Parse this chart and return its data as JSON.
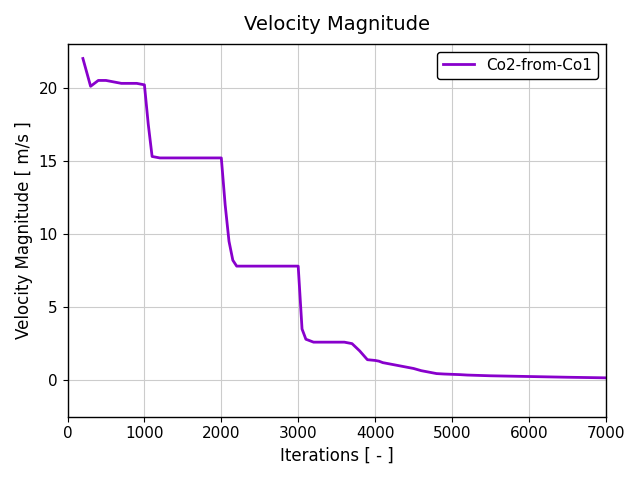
{
  "title": "Velocity Magnitude",
  "xlabel": "Iterations [ - ]",
  "ylabel": "Velocity Magnitude [ m/s ]",
  "legend_label": "Co2-from-Co1",
  "line_color": "#8800cc",
  "background_color": "#ffffff",
  "grid_color": "#cccccc",
  "xlim": [
    0,
    7000
  ],
  "ylim": [
    -2.5,
    23
  ],
  "xticks": [
    0,
    1000,
    2000,
    3000,
    4000,
    5000,
    6000,
    7000
  ],
  "yticks": [
    0,
    5,
    10,
    15,
    20
  ],
  "x_data": [
    200,
    300,
    400,
    500,
    600,
    700,
    800,
    900,
    1000,
    1050,
    1100,
    1200,
    1300,
    1400,
    1500,
    1600,
    1700,
    1800,
    1900,
    2000,
    2050,
    2100,
    2150,
    2200,
    2300,
    2400,
    2500,
    2600,
    2700,
    2800,
    2900,
    3000,
    3050,
    3100,
    3200,
    3300,
    3400,
    3500,
    3600,
    3700,
    3800,
    3900,
    4000,
    4050,
    4100,
    4200,
    4300,
    4400,
    4500,
    4600,
    4700,
    4800,
    4900,
    5000,
    5100,
    5200,
    5500,
    6000,
    6500,
    7000
  ],
  "y_data": [
    22.0,
    20.1,
    20.5,
    20.5,
    20.4,
    20.3,
    20.3,
    20.3,
    20.2,
    17.5,
    15.3,
    15.2,
    15.2,
    15.2,
    15.2,
    15.2,
    15.2,
    15.2,
    15.2,
    15.2,
    12.0,
    9.5,
    8.2,
    7.8,
    7.8,
    7.8,
    7.8,
    7.8,
    7.8,
    7.8,
    7.8,
    7.8,
    3.5,
    2.8,
    2.6,
    2.6,
    2.6,
    2.6,
    2.6,
    2.5,
    2.0,
    1.4,
    1.35,
    1.3,
    1.2,
    1.1,
    1.0,
    0.9,
    0.8,
    0.65,
    0.55,
    0.45,
    0.42,
    0.4,
    0.38,
    0.35,
    0.3,
    0.25,
    0.2,
    0.16
  ],
  "title_fontsize": 14,
  "label_fontsize": 12,
  "tick_fontsize": 11,
  "legend_fontsize": 11,
  "line_width": 2.0
}
